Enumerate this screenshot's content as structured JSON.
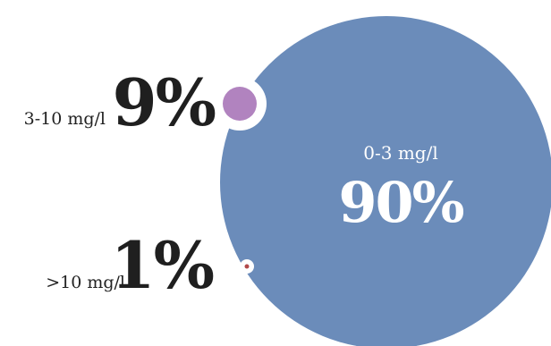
{
  "chart_data": {
    "type": "bubble",
    "series": [
      {
        "label": "0-3 mg/l",
        "percent_label": "90%",
        "value": 90,
        "color": "#6b8cba"
      },
      {
        "label": "3-10 mg/l",
        "percent_label": "9%",
        "value": 9,
        "color": "#b183bf"
      },
      {
        "label": ">10 mg/l",
        "percent_label": "1%",
        "value": 1,
        "color": "#b24a4a"
      }
    ]
  }
}
